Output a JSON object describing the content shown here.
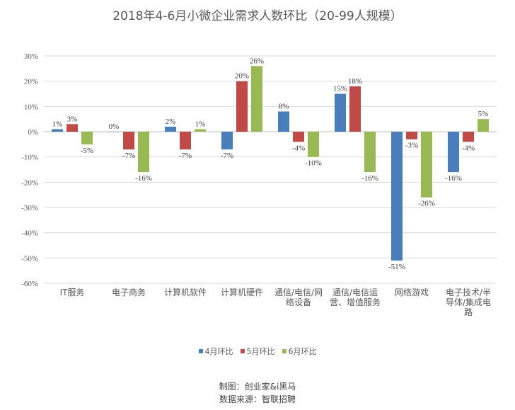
{
  "chart_data": {
    "type": "bar",
    "title": "2018年4-6月小微企业需求人数环比（20-99人规模）",
    "categories": [
      "IT服务",
      "电子商务",
      "计算机软件",
      "计算机硬件",
      "通信/电信/网络设备",
      "通信/电信运营、增值服务",
      "网络游戏",
      "电子技术/半导体/集成电路"
    ],
    "series": [
      {
        "name": "4月环比",
        "color": "#4a7ebb",
        "values": [
          1,
          0,
          2,
          -7,
          8,
          15,
          -51,
          -16
        ]
      },
      {
        "name": "5月环比",
        "color": "#be4b48",
        "values": [
          3,
          -7,
          -7,
          20,
          -4,
          18,
          -3,
          -4
        ]
      },
      {
        "name": "6月环比",
        "color": "#98b954",
        "values": [
          -5,
          -16,
          1,
          26,
          -10,
          -16,
          -26,
          5
        ]
      }
    ],
    "ylim": [
      -60,
      30
    ],
    "yticks": [
      "30%",
      "20%",
      "10%",
      "0%",
      "-10%",
      "-20%",
      "-30%",
      "-40%",
      "-50%",
      "-60%"
    ],
    "grid": true,
    "legend": "bottom"
  },
  "footer": {
    "line1": "制图：创业家&i黑马",
    "line2": "数据来源：智联招聘"
  }
}
